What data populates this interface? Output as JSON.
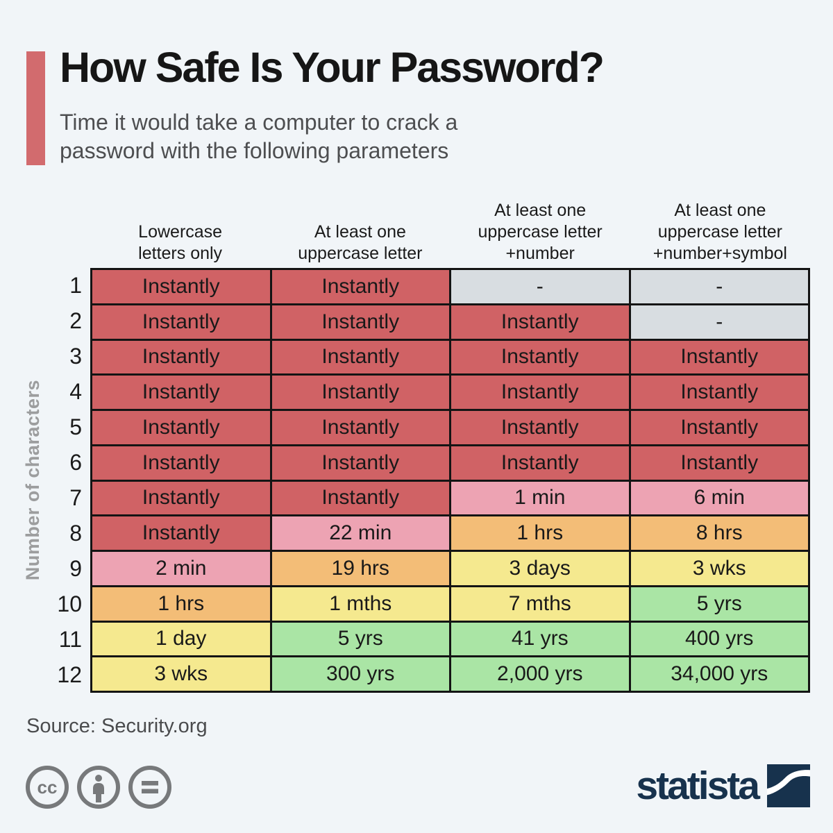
{
  "page": {
    "background": "#f1f5f8"
  },
  "header": {
    "accent_color": "#d26b6e",
    "title": "How Safe Is Your Password?",
    "subtitle_lines": [
      "Time it would take a computer to crack a",
      "password with the following parameters"
    ]
  },
  "chart_data": {
    "type": "table",
    "title": "How Safe Is Your Password?",
    "subtitle": "Time it would take a computer to crack a password with the following parameters",
    "row_axis_label": "Number of characters",
    "column_headers": [
      [
        "Lowercase",
        "letters only"
      ],
      [
        "At least one",
        "uppercase letter"
      ],
      [
        "At least one",
        "uppercase letter",
        "+number"
      ],
      [
        "At least one",
        "uppercase letter",
        "+number+symbol"
      ]
    ],
    "rows": [
      "1",
      "2",
      "3",
      "4",
      "5",
      "6",
      "7",
      "8",
      "9",
      "10",
      "11",
      "12"
    ],
    "palette": {
      "red": "#d06265",
      "pink": "#eda3b3",
      "orange": "#f3bd77",
      "yellow": "#f5e98f",
      "green": "#aae5a5",
      "gray": "#d8dde1"
    },
    "cells": [
      [
        {
          "text": "Instantly",
          "color": "red"
        },
        {
          "text": "Instantly",
          "color": "red"
        },
        {
          "text": "-",
          "color": "gray"
        },
        {
          "text": "-",
          "color": "gray"
        }
      ],
      [
        {
          "text": "Instantly",
          "color": "red"
        },
        {
          "text": "Instantly",
          "color": "red"
        },
        {
          "text": "Instantly",
          "color": "red"
        },
        {
          "text": "-",
          "color": "gray"
        }
      ],
      [
        {
          "text": "Instantly",
          "color": "red"
        },
        {
          "text": "Instantly",
          "color": "red"
        },
        {
          "text": "Instantly",
          "color": "red"
        },
        {
          "text": "Instantly",
          "color": "red"
        }
      ],
      [
        {
          "text": "Instantly",
          "color": "red"
        },
        {
          "text": "Instantly",
          "color": "red"
        },
        {
          "text": "Instantly",
          "color": "red"
        },
        {
          "text": "Instantly",
          "color": "red"
        }
      ],
      [
        {
          "text": "Instantly",
          "color": "red"
        },
        {
          "text": "Instantly",
          "color": "red"
        },
        {
          "text": "Instantly",
          "color": "red"
        },
        {
          "text": "Instantly",
          "color": "red"
        }
      ],
      [
        {
          "text": "Instantly",
          "color": "red"
        },
        {
          "text": "Instantly",
          "color": "red"
        },
        {
          "text": "Instantly",
          "color": "red"
        },
        {
          "text": "Instantly",
          "color": "red"
        }
      ],
      [
        {
          "text": "Instantly",
          "color": "red"
        },
        {
          "text": "Instantly",
          "color": "red"
        },
        {
          "text": "1 min",
          "color": "pink"
        },
        {
          "text": "6 min",
          "color": "pink"
        }
      ],
      [
        {
          "text": "Instantly",
          "color": "red"
        },
        {
          "text": "22 min",
          "color": "pink"
        },
        {
          "text": "1 hrs",
          "color": "orange"
        },
        {
          "text": "8 hrs",
          "color": "orange"
        }
      ],
      [
        {
          "text": "2 min",
          "color": "pink"
        },
        {
          "text": "19 hrs",
          "color": "orange"
        },
        {
          "text": "3 days",
          "color": "yellow"
        },
        {
          "text": "3 wks",
          "color": "yellow"
        }
      ],
      [
        {
          "text": "1 hrs",
          "color": "orange"
        },
        {
          "text": "1 mths",
          "color": "yellow"
        },
        {
          "text": "7 mths",
          "color": "yellow"
        },
        {
          "text": "5 yrs",
          "color": "green"
        }
      ],
      [
        {
          "text": "1 day",
          "color": "yellow"
        },
        {
          "text": "5 yrs",
          "color": "green"
        },
        {
          "text": "41 yrs",
          "color": "green"
        },
        {
          "text": "400 yrs",
          "color": "green"
        }
      ],
      [
        {
          "text": "3 wks",
          "color": "yellow"
        },
        {
          "text": "300 yrs",
          "color": "green"
        },
        {
          "text": "2,000 yrs",
          "color": "green"
        },
        {
          "text": "34,000 yrs",
          "color": "green"
        }
      ]
    ]
  },
  "footer": {
    "source": "Source: Security.org",
    "license_icons": [
      "cc-icon",
      "attribution-icon",
      "equals-icon"
    ],
    "icon_color": "#77797b",
    "brand": "statista",
    "brand_color": "#17324d"
  }
}
